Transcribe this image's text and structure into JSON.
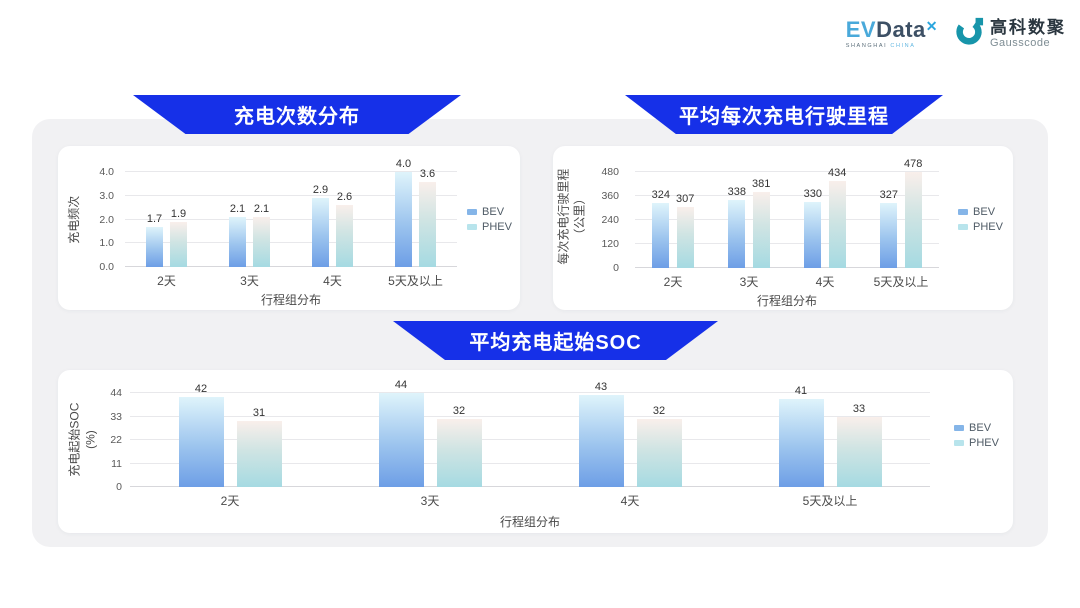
{
  "logo": {
    "evdata": {
      "ev": "EV",
      "data": "Data",
      "sup": "✕",
      "sub_left": "SHANGHAI",
      "sub_right": "CHINA"
    },
    "gausscode": {
      "cn": "高科数聚",
      "en": "Gausscode",
      "icon": "g-ring-icon"
    }
  },
  "colors": {
    "banner_blue": "#1630e8",
    "panel_gray": "#f1f1f3",
    "bev_gradient_top": "#dff4fb",
    "bev_gradient_bottom": "#6d9ee6",
    "phev_gradient_top": "#f9efeb",
    "phev_gradient_bottom": "#a5dae2",
    "legend_bev": "#85b5e8",
    "legend_phev": "#b8e4ec",
    "gausscode_teal": "#1795aa"
  },
  "chart_data": [
    {
      "type": "bar",
      "title": "充电次数分布",
      "categories": [
        "2天",
        "3天",
        "4天",
        "5天及以上"
      ],
      "series": [
        {
          "name": "BEV",
          "values": [
            1.7,
            2.1,
            2.9,
            4.0
          ],
          "labels": [
            "1.7",
            "2.1",
            "2.9",
            "4.0"
          ]
        },
        {
          "name": "PHEV",
          "values": [
            1.9,
            2.1,
            2.6,
            3.6
          ],
          "labels": [
            "1.9",
            "2.1",
            "2.6",
            "3.6"
          ]
        }
      ],
      "ylabel": "充电频次",
      "xlabel": "行程组分布",
      "yticks": [
        0,
        1,
        2,
        3,
        4
      ],
      "ytick_labels": [
        "0.0",
        "1.0",
        "2.0",
        "3.0",
        "4.0"
      ],
      "ymax": 4,
      "ylim": [
        0,
        4
      ],
      "grid": true,
      "legend_position": "right"
    },
    {
      "type": "bar",
      "title": "平均每次充电行驶里程",
      "categories": [
        "2天",
        "3天",
        "4天",
        "5天及以上"
      ],
      "series": [
        {
          "name": "BEV",
          "values": [
            324,
            338,
            330,
            327
          ],
          "labels": [
            "324",
            "338",
            "330",
            "327"
          ]
        },
        {
          "name": "PHEV",
          "values": [
            307,
            381,
            434,
            478
          ],
          "labels": [
            "307",
            "381",
            "434",
            "478"
          ]
        }
      ],
      "ylabel": "每次充电行驶里程",
      "ylabel2": "（公里）",
      "xlabel": "行程组分布",
      "yticks": [
        0,
        120,
        240,
        360,
        480
      ],
      "ytick_labels": [
        "0",
        "120",
        "240",
        "360",
        "480"
      ],
      "ymax": 480,
      "ylim": [
        0,
        480
      ],
      "grid": true,
      "legend_position": "right"
    },
    {
      "type": "bar",
      "title": "平均充电起始SOC",
      "categories": [
        "2天",
        "3天",
        "4天",
        "5天及以上"
      ],
      "series": [
        {
          "name": "BEV",
          "values": [
            42,
            44,
            43,
            41
          ],
          "labels": [
            "42",
            "44",
            "43",
            "41"
          ]
        },
        {
          "name": "PHEV",
          "values": [
            31,
            32,
            32,
            33
          ],
          "labels": [
            "31",
            "32",
            "32",
            "33"
          ]
        }
      ],
      "ylabel": "充电起始SOC",
      "ylabel2": "(%)",
      "xlabel": "行程组分布",
      "yticks": [
        0,
        11,
        22,
        33,
        44
      ],
      "ytick_labels": [
        "0",
        "11",
        "22",
        "33",
        "44"
      ],
      "ymax": 44,
      "ylim": [
        0,
        44
      ],
      "grid": true,
      "legend_position": "right"
    }
  ]
}
